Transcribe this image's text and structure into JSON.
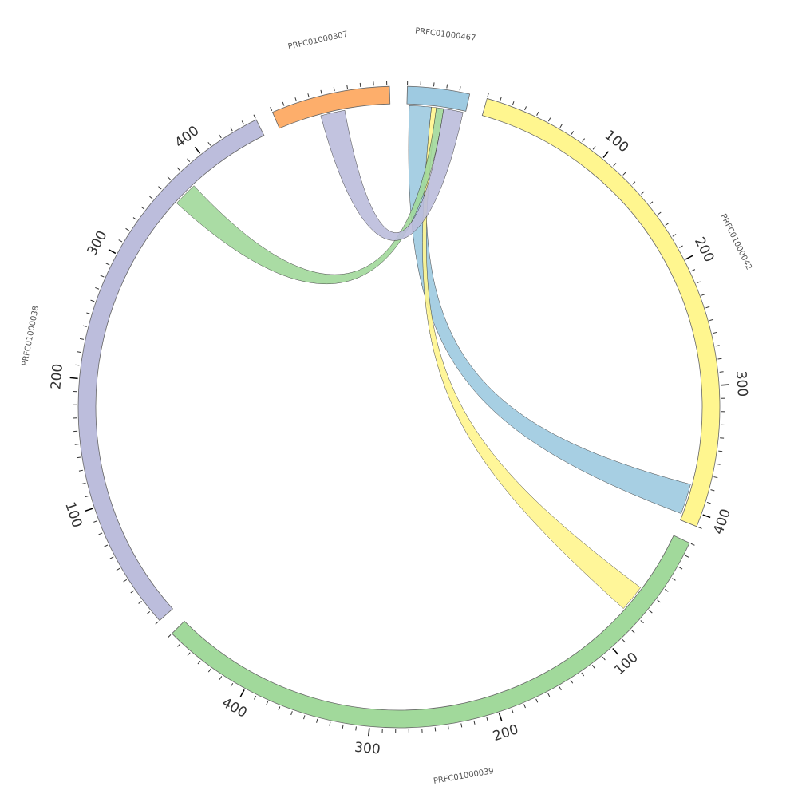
{
  "chart_data": {
    "type": "chord",
    "segments": [
      {
        "name": "PRFC01000467",
        "length": 48,
        "color": "#9ecae1"
      },
      {
        "name": "PRFC01000042",
        "length": 410,
        "color": "#fff68f"
      },
      {
        "name": "PRFC01000039",
        "length": 470,
        "color": "#a1d99b"
      },
      {
        "name": "PRFC01000038",
        "length": 450,
        "color": "#bcbddc"
      },
      {
        "name": "PRFC01000307",
        "length": 92,
        "color": "#fdae6b"
      }
    ],
    "major_tick_labels": [
      "100",
      "200",
      "300",
      "400"
    ],
    "links": [
      {
        "source": "PRFC01000467",
        "source_start": 2,
        "source_end": 20,
        "target": "PRFC01000042",
        "target_start": 380,
        "target_end": 405,
        "color": "#9ecae1"
      },
      {
        "source": "PRFC01000467",
        "source_start": 20,
        "source_end": 24,
        "target": "PRFC01000039",
        "target_start": 50,
        "target_end": 72,
        "color": "#fff68f"
      },
      {
        "source": "PRFC01000467",
        "source_start": 24,
        "source_end": 30,
        "target": "PRFC01000038",
        "target_start": 360,
        "target_end": 380,
        "color": "#a1d99b"
      },
      {
        "source": "PRFC01000467",
        "source_start": 30,
        "source_end": 46,
        "target": "PRFC01000307",
        "target_start": 35,
        "target_end": 55,
        "color": "#bcbddc"
      }
    ]
  }
}
